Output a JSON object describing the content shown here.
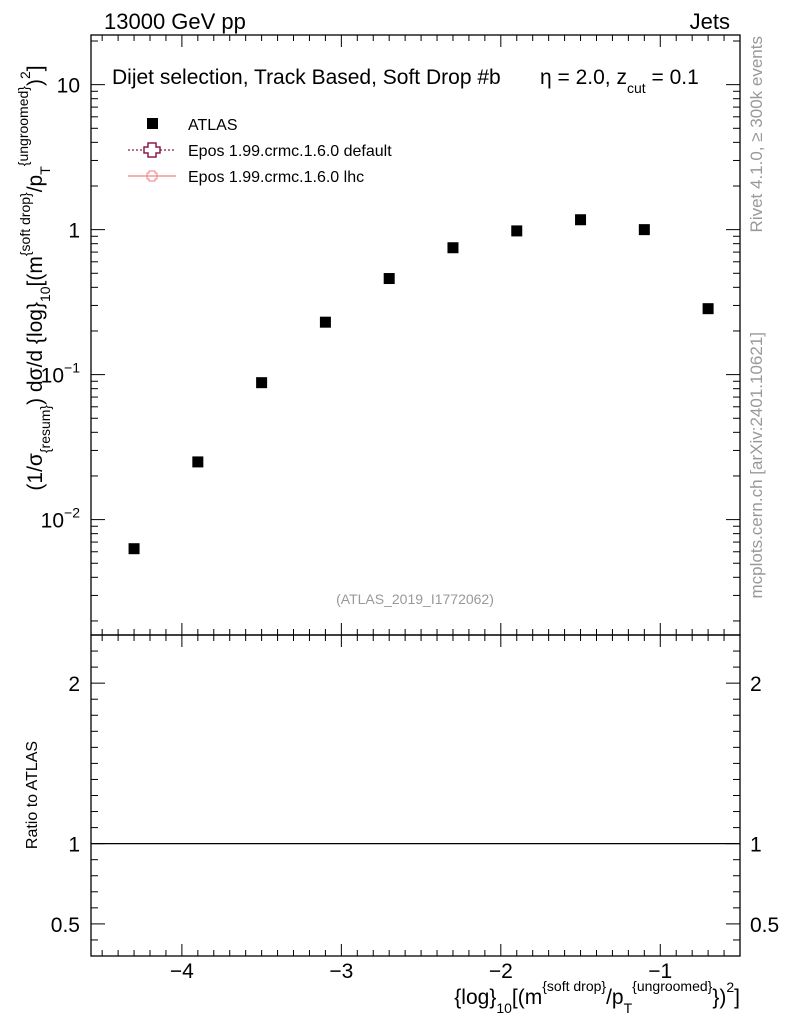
{
  "header": {
    "left": "13000 GeV pp",
    "right": "Jets"
  },
  "side_labels": {
    "rivet": "Rivet 4.1.0, ≥ 300k events",
    "mcplots": "mcplots.cern.ch [arXiv:2401.10621]"
  },
  "chart_data": [
    {
      "type": "scatter",
      "panel": "main",
      "title": "Dijet selection, Track Based, Soft Drop #b",
      "title_extra": "η = 2.0, z",
      "title_extra_sub": "cut",
      "title_extra_end": " = 0.1",
      "watermark": "(ATLAS_2019_I1772062)",
      "ylabel_parts": {
        "p1": "(1/σ",
        "p1_sub": "{resum}",
        "p2": ") dσ/d {log}",
        "p2_sub": "10",
        "p3": "[(m",
        "p3_sup": "{soft drop}",
        "p4": "/p",
        "p4_sub": "T",
        "p4_sup": "{ungroomed}",
        "p5": ")",
        "p5_sup": "2",
        "p6": "]"
      },
      "yscale": "log",
      "ylim": [
        0.0016,
        22
      ],
      "xlim": [
        -4.57,
        -0.5
      ],
      "y_tick_labels": [
        {
          "value": 10,
          "text": "10"
        },
        {
          "value": 1,
          "text": "1"
        },
        {
          "value": 0.1,
          "base": "10",
          "exp": "−1"
        },
        {
          "value": 0.01,
          "base": "10",
          "exp": "−2"
        }
      ],
      "legend": {
        "position": "top-left",
        "entries": [
          {
            "label": "ATLAS",
            "style": "black-square"
          },
          {
            "label": "Epos 1.99.crmc.1.6.0 default",
            "style": "dotted-open-cross",
            "color": "#8b1a4a"
          },
          {
            "label": "Epos 1.99.crmc.1.6.0 lhc",
            "style": "solid-line-cross",
            "color": "#f08080"
          }
        ]
      },
      "series": [
        {
          "name": "ATLAS",
          "color": "#000000",
          "x": [
            -4.3,
            -3.9,
            -3.5,
            -3.1,
            -2.7,
            -2.3,
            -1.9,
            -1.5,
            -1.1,
            -0.7
          ],
          "y": [
            0.0063,
            0.025,
            0.088,
            0.23,
            0.46,
            0.75,
            0.98,
            1.17,
            1.0,
            0.285
          ]
        }
      ]
    },
    {
      "type": "line",
      "panel": "ratio",
      "ylabel": "Ratio to ATLAS",
      "ylim": [
        0.3,
        2.3
      ],
      "xlim": [
        -4.57,
        -0.5
      ],
      "y_tick_labels": [
        {
          "value": 2,
          "text": "2"
        },
        {
          "value": 1,
          "text": "1"
        },
        {
          "value": 0.5,
          "text": "0.5"
        }
      ],
      "x_tick_labels": [
        {
          "value": -4,
          "text": "−4"
        },
        {
          "value": -3,
          "text": "−3"
        },
        {
          "value": -2,
          "text": "−2"
        },
        {
          "value": -1,
          "text": "−1"
        }
      ],
      "reference_line": 1,
      "xlabel_parts": {
        "p1": "{log}",
        "p1_sub": "10",
        "p2": "[(m",
        "p2_sup": "{soft drop}",
        "p3": "/p",
        "p3_sub": "T",
        "p3_sup": "{ungroomed}",
        "p4": "})",
        "p4_sup": "2",
        "p5": "]"
      }
    }
  ]
}
